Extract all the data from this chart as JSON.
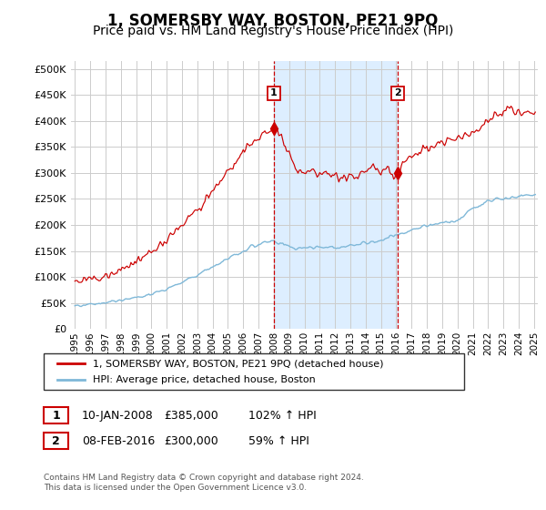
{
  "title": "1, SOMERSBY WAY, BOSTON, PE21 9PQ",
  "subtitle": "Price paid vs. HM Land Registry's House Price Index (HPI)",
  "legend_line1": "1, SOMERSBY WAY, BOSTON, PE21 9PQ (detached house)",
  "legend_line2": "HPI: Average price, detached house, Boston",
  "annotation1_date_str": "10-JAN-2008",
  "annotation1_price": 385000,
  "annotation1_hpi_str": "102% ↑ HPI",
  "annotation2_date_str": "08-FEB-2016",
  "annotation2_price": 300000,
  "annotation2_hpi_str": "59% ↑ HPI",
  "footer": "Contains HM Land Registry data © Crown copyright and database right 2024.\nThis data is licensed under the Open Government Licence v3.0.",
  "yticks": [
    0,
    50000,
    100000,
    150000,
    200000,
    250000,
    300000,
    350000,
    400000,
    450000,
    500000
  ],
  "hpi_color": "#7fb8d8",
  "price_color": "#cc0000",
  "vline_color": "#cc0000",
  "highlight_color": "#ddeeff",
  "background_color": "#ffffff",
  "grid_color": "#cccccc",
  "title_fontsize": 12,
  "subtitle_fontsize": 10
}
